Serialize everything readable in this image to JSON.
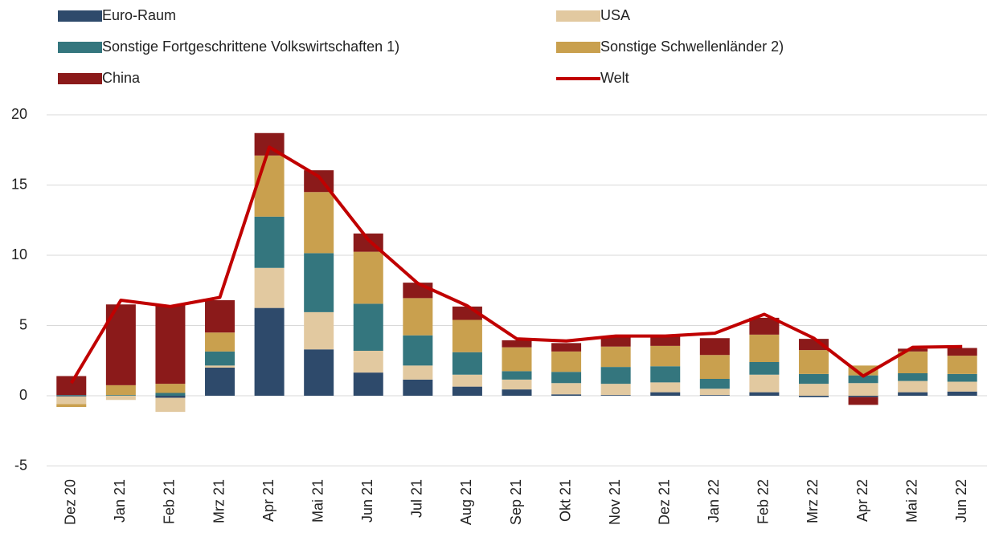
{
  "chart_data": {
    "type": "bar",
    "stacked": true,
    "categories": [
      "Dez 20",
      "Jan 21",
      "Feb 21",
      "Mrz 21",
      "Apr 21",
      "Mai 21",
      "Jun 21",
      "Jul 21",
      "Aug 21",
      "Sep 21",
      "Okt 21",
      "Nov 21",
      "Dez 21",
      "Jan 22",
      "Feb 22",
      "Mrz 22",
      "Apr 22",
      "Mai 22",
      "Jun 22"
    ],
    "series": [
      {
        "name": "Euro-Raum",
        "color": "#2e4a6b",
        "values": [
          -0.05,
          0,
          -0.15,
          2.0,
          6.25,
          3.3,
          1.65,
          1.15,
          0.65,
          0.45,
          0.1,
          0.05,
          0.25,
          0.05,
          0.25,
          -0.1,
          -0.1,
          0.25,
          0.3
        ]
      },
      {
        "name": "USA",
        "color": "#e2c9a0",
        "values": [
          -0.55,
          -0.3,
          -1.0,
          0.15,
          2.85,
          2.65,
          1.55,
          1.0,
          0.85,
          0.7,
          0.8,
          0.8,
          0.7,
          0.45,
          1.25,
          0.85,
          0.9,
          0.8,
          0.7
        ]
      },
      {
        "name": "Sonstige Fortgeschrittene Volkswirtschaften 1)",
        "color": "#34767e",
        "values": [
          0.05,
          0.05,
          0.2,
          1.0,
          3.65,
          4.2,
          3.35,
          2.15,
          1.6,
          0.6,
          0.8,
          1.2,
          1.15,
          0.7,
          0.9,
          0.7,
          0.55,
          0.55,
          0.55
        ]
      },
      {
        "name": "Sonstige Schwellenländer 2)",
        "color": "#c9a04e",
        "values": [
          -0.2,
          0.7,
          0.65,
          1.35,
          4.35,
          4.35,
          3.7,
          2.65,
          2.3,
          1.7,
          1.45,
          1.45,
          1.45,
          1.7,
          1.95,
          1.7,
          0.7,
          1.55,
          1.3
        ]
      },
      {
        "name": "China",
        "color": "#8b1a1a",
        "values": [
          1.35,
          5.75,
          5.6,
          2.3,
          1.6,
          1.55,
          1.3,
          1.1,
          0.95,
          0.5,
          0.6,
          0.65,
          0.65,
          1.2,
          1.2,
          0.8,
          -0.55,
          0.2,
          0.55
        ]
      },
      {
        "name": "Welt",
        "type": "line",
        "color": "#c00000",
        "values": [
          0.9,
          6.8,
          6.35,
          7.0,
          17.7,
          15.6,
          11.1,
          8.0,
          6.4,
          4.05,
          3.9,
          4.25,
          4.25,
          4.45,
          5.8,
          4.1,
          1.4,
          3.45,
          3.5
        ]
      }
    ],
    "ylim": [
      -5,
      20
    ],
    "yticks": [
      -5,
      0,
      5,
      10,
      15,
      20
    ],
    "grid": true
  }
}
